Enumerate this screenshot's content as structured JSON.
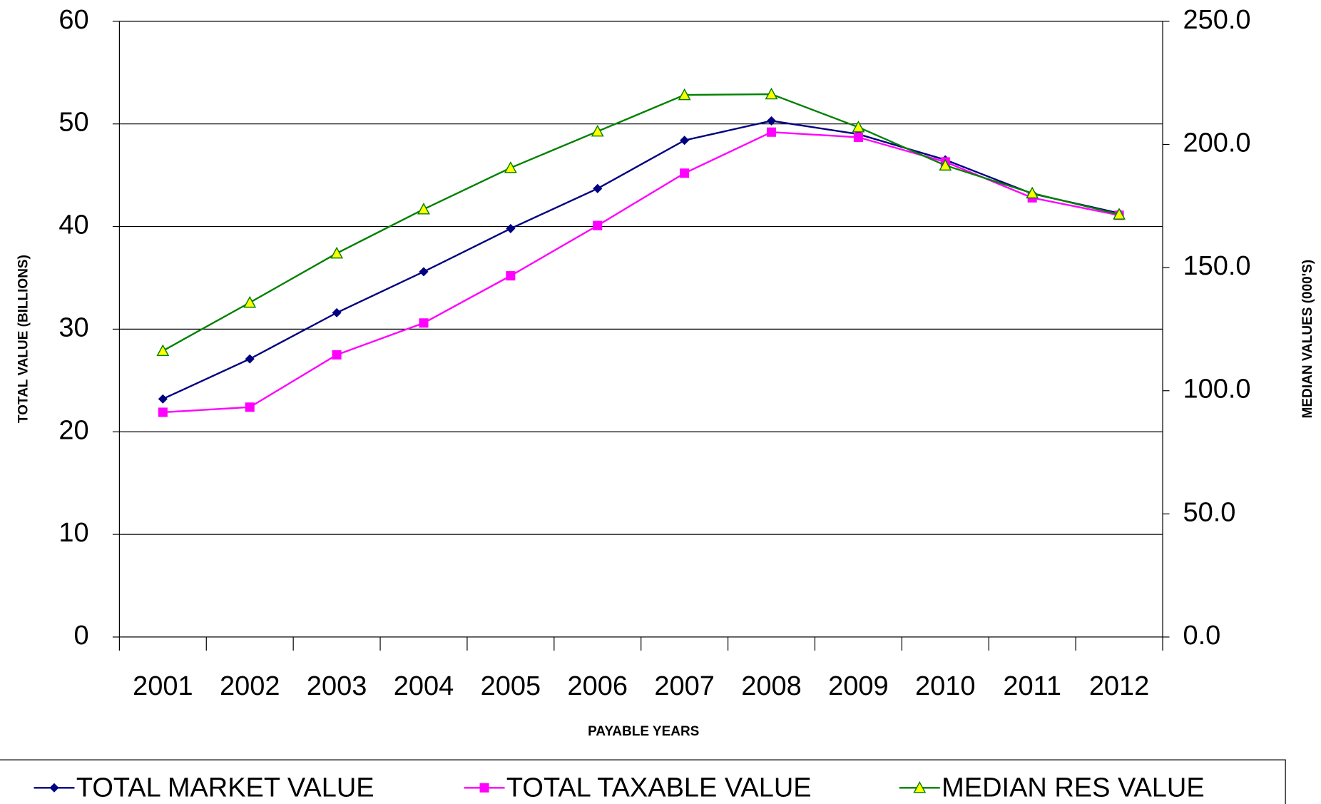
{
  "chart_data": {
    "type": "line",
    "x_label": "PAYABLE YEARS",
    "y_label": "TOTAL VALUE (BILLIONS)",
    "y2_label": "MEDIAN VALUES (000'S)",
    "categories": [
      "2001",
      "2002",
      "2003",
      "2004",
      "2005",
      "2006",
      "2007",
      "2008",
      "2009",
      "2010",
      "2011",
      "2012"
    ],
    "series": [
      {
        "name": "TOTAL MARKET VALUE",
        "color": "#000080",
        "marker": "diamond",
        "values": [
          23.2,
          27.1,
          31.6,
          35.6,
          39.8,
          43.7,
          48.4,
          50.3,
          49.0,
          46.5,
          43.2,
          41.3
        ]
      },
      {
        "name": "TOTAL TAXABLE VALUE",
        "color": "#ff00ff",
        "marker": "square",
        "values": [
          21.9,
          22.4,
          27.5,
          30.6,
          35.2,
          40.1,
          45.2,
          49.2,
          48.7,
          46.3,
          42.8,
          41.1
        ]
      },
      {
        "name": "MEDIAN RES VALUE",
        "color": "#008000",
        "marker": "triangle",
        "axis": "y2",
        "values": [
          116.2,
          135.8,
          155.8,
          173.7,
          190.5,
          205.3,
          220.1,
          220.4,
          207.0,
          191.5,
          180.2,
          171.6
        ]
      }
    ],
    "ylim": [
      0,
      60
    ],
    "yticks": [
      0,
      10,
      20,
      30,
      40,
      50,
      60
    ],
    "y2lim": [
      0,
      250
    ],
    "y2ticks": [
      {
        "value": 0,
        "label": "0.0"
      },
      {
        "value": 50,
        "label": "50.0"
      },
      {
        "value": 100,
        "label": "100.0"
      },
      {
        "value": 150,
        "label": "150.0"
      },
      {
        "value": 200,
        "label": "200.0"
      },
      {
        "value": 250,
        "label": "250.0"
      }
    ],
    "grid": true,
    "legend": "bottom"
  }
}
